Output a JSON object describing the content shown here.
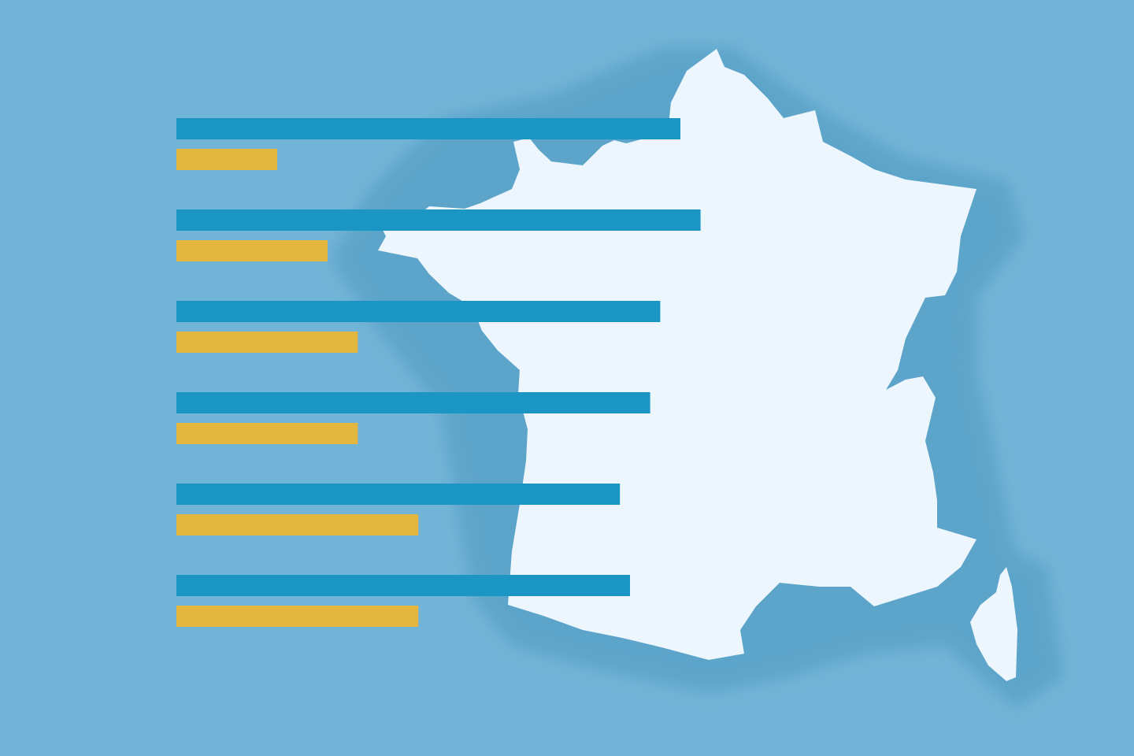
{
  "background_color": "#72b4d7",
  "map_color": "#edf6fc",
  "halo_color": "#5aa2c8",
  "chart_data": {
    "type": "bar",
    "orientation": "horizontal",
    "title": "",
    "xlabel": "",
    "ylabel": "",
    "xlim": [
      0,
      100
    ],
    "grid": false,
    "legend": "none",
    "categories": [
      "",
      "",
      "",
      "",
      "",
      ""
    ],
    "series": [
      {
        "color": "#1a95c4",
        "values": [
          100,
          104,
          96,
          94,
          88,
          90
        ]
      },
      {
        "color": "#e3b73f",
        "values": [
          20,
          30,
          36,
          36,
          48,
          48
        ]
      }
    ]
  }
}
